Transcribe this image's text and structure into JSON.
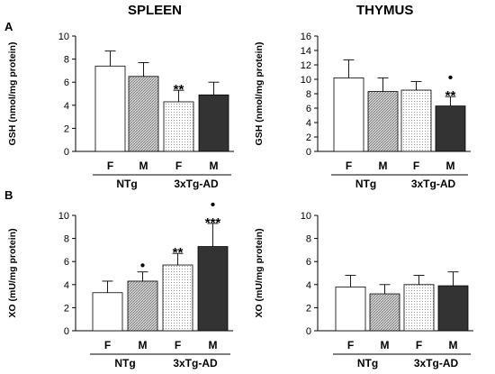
{
  "column_titles": [
    "SPLEEN",
    "THYMUS"
  ],
  "panel_letters": [
    "A",
    "B"
  ],
  "colors": {
    "F_NTg": "#ffffff",
    "M_NTg": "#bdbdbd",
    "F_3xTg": "#f2f2f2",
    "M_3xTg": "#333333",
    "axis": "#000000"
  },
  "chart_data": [
    {
      "type": "bar",
      "ylabel": "GSH (nmol/mg protein)",
      "ylim": [
        0,
        10
      ],
      "yticks": [
        "0",
        "2",
        "4",
        "6",
        "8",
        "10"
      ],
      "categories": [
        "F",
        "M",
        "F",
        "M"
      ],
      "groups": [
        {
          "label": "NTg",
          "members": [
            0,
            1
          ]
        },
        {
          "label": "3xTg-AD",
          "members": [
            2,
            3
          ]
        }
      ],
      "values": [
        7.4,
        6.5,
        4.3,
        4.9
      ],
      "errors": [
        1.3,
        1.2,
        1.0,
        1.1
      ],
      "annotations": [
        "",
        "",
        "**",
        ""
      ]
    },
    {
      "type": "bar",
      "ylabel": "GSH (nmol/mg protein)",
      "ylim": [
        0,
        16
      ],
      "yticks": [
        "0",
        "2",
        "4",
        "6",
        "8",
        "10",
        "12",
        "14",
        "16"
      ],
      "categories": [
        "F",
        "M",
        "F",
        "M"
      ],
      "groups": [
        {
          "label": "NTg",
          "members": [
            0,
            1
          ]
        },
        {
          "label": "3xTg-AD",
          "members": [
            2,
            3
          ]
        }
      ],
      "values": [
        10.2,
        8.3,
        8.5,
        6.3
      ],
      "errors": [
        2.5,
        1.9,
        1.2,
        1.3
      ],
      "annotations": [
        "",
        "",
        "",
        "•\n**"
      ]
    },
    {
      "type": "bar",
      "ylabel": "XO (mU/mg protein)",
      "ylim": [
        0,
        10
      ],
      "yticks": [
        "0",
        "2",
        "4",
        "6",
        "8",
        "10"
      ],
      "categories": [
        "F",
        "M",
        "F",
        "M"
      ],
      "groups": [
        {
          "label": "NTg",
          "members": [
            0,
            1
          ]
        },
        {
          "label": "3xTg-AD",
          "members": [
            2,
            3
          ]
        }
      ],
      "values": [
        3.3,
        4.3,
        5.7,
        7.3
      ],
      "errors": [
        1.0,
        0.8,
        1.0,
        2.0
      ],
      "annotations": [
        "",
        "•",
        "**",
        "•\n***"
      ]
    },
    {
      "type": "bar",
      "ylabel": "XO (mU/mg protein)",
      "ylim": [
        0,
        10
      ],
      "yticks": [
        "0",
        "2",
        "4",
        "6",
        "8",
        "10"
      ],
      "categories": [
        "F",
        "M",
        "F",
        "M"
      ],
      "groups": [
        {
          "label": "NTg",
          "members": [
            0,
            1
          ]
        },
        {
          "label": "3xTg-AD",
          "members": [
            2,
            3
          ]
        }
      ],
      "values": [
        3.8,
        3.2,
        4.0,
        3.9
      ],
      "errors": [
        1.0,
        0.8,
        0.8,
        1.2
      ],
      "annotations": [
        "",
        "",
        "",
        ""
      ]
    }
  ]
}
